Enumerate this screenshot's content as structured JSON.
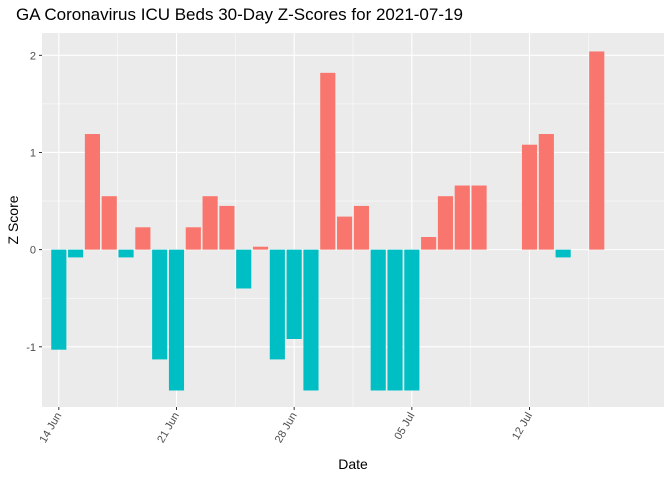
{
  "chart_data": {
    "type": "bar",
    "title": "GA Coronavirus ICU Beds 30-Day Z-Scores for 2021-07-19",
    "xlabel": "Date",
    "ylabel": "Z Score",
    "ylim": [
      -1.62,
      2.23
    ],
    "yticks": [
      -1,
      0,
      1,
      2
    ],
    "xlim": [
      "2021-06-13",
      "2021-07-20"
    ],
    "xticks": [
      {
        "date": "2021-06-14",
        "label": "14 Jun"
      },
      {
        "date": "2021-06-21",
        "label": "21 Jun"
      },
      {
        "date": "2021-06-28",
        "label": "28 Jun"
      },
      {
        "date": "2021-07-05",
        "label": "05 Jul"
      },
      {
        "date": "2021-07-12",
        "label": "12 Jul"
      }
    ],
    "grid": true,
    "legend": "none",
    "colors": {
      "positive": "#F8766D",
      "negative": "#00BFC4",
      "panel": "#EBEBEB",
      "grid": "#FFFFFF"
    },
    "x": [
      "2021-06-14",
      "2021-06-15",
      "2021-06-16",
      "2021-06-17",
      "2021-06-18",
      "2021-06-19",
      "2021-06-20",
      "2021-06-21",
      "2021-06-22",
      "2021-06-23",
      "2021-06-24",
      "2021-06-25",
      "2021-06-26",
      "2021-06-27",
      "2021-06-28",
      "2021-06-29",
      "2021-06-30",
      "2021-07-01",
      "2021-07-02",
      "2021-07-03",
      "2021-07-04",
      "2021-07-05",
      "2021-07-06",
      "2021-07-07",
      "2021-07-08",
      "2021-07-09",
      "2021-07-10",
      "2021-07-11",
      "2021-07-12",
      "2021-07-13",
      "2021-07-14",
      "2021-07-15",
      "2021-07-16"
    ],
    "values": [
      -1.03,
      -0.08,
      1.19,
      0.55,
      -0.08,
      0.23,
      -1.13,
      -1.45,
      0.23,
      0.55,
      0.45,
      -0.4,
      0.03,
      -1.13,
      -0.92,
      -1.45,
      1.82,
      0.34,
      0.45,
      -1.45,
      -1.45,
      -1.45,
      0.13,
      0.55,
      0.66,
      0.66,
      null,
      null,
      1.08,
      1.19,
      -0.08,
      null,
      2.04
    ]
  }
}
